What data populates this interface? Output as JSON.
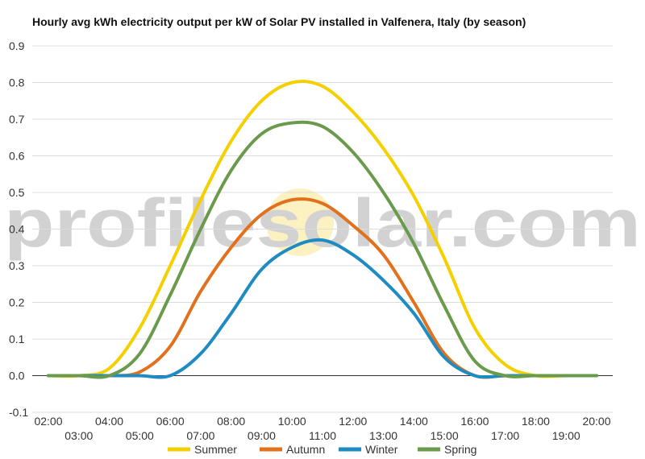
{
  "chart_data": {
    "type": "line",
    "title": "Hourly avg kWh electricity output per kW of Solar PV installed in Valfenera, Italy (by season)",
    "xlabel": "",
    "ylabel": "",
    "x": [
      "02:00",
      "03:00",
      "04:00",
      "05:00",
      "06:00",
      "07:00",
      "08:00",
      "09:00",
      "10:00",
      "11:00",
      "12:00",
      "13:00",
      "14:00",
      "15:00",
      "16:00",
      "17:00",
      "18:00",
      "19:00",
      "20:00"
    ],
    "ylim": [
      -0.1,
      0.9
    ],
    "yticks": [
      "0.9",
      "0.8",
      "0.7",
      "0.6",
      "0.5",
      "0.4",
      "0.3",
      "0.2",
      "0.1",
      "0.0",
      "-0.1"
    ],
    "grid": true,
    "legend_position": "bottom",
    "watermark": "profilesolar.com",
    "series": [
      {
        "name": "Summer",
        "color": "#f5d000",
        "values": [
          0.0,
          0.0,
          0.02,
          0.13,
          0.3,
          0.48,
          0.64,
          0.75,
          0.8,
          0.79,
          0.72,
          0.62,
          0.49,
          0.32,
          0.13,
          0.03,
          0.0,
          0.0,
          0.0
        ]
      },
      {
        "name": "Autumn",
        "color": "#e2711d",
        "values": [
          0.0,
          0.0,
          0.0,
          0.01,
          0.08,
          0.23,
          0.35,
          0.44,
          0.48,
          0.47,
          0.41,
          0.33,
          0.2,
          0.06,
          0.0,
          0.0,
          0.0,
          0.0,
          0.0
        ]
      },
      {
        "name": "Winter",
        "color": "#1e8bc3",
        "values": [
          0.0,
          0.0,
          0.0,
          0.0,
          0.0,
          0.06,
          0.17,
          0.29,
          0.35,
          0.37,
          0.33,
          0.26,
          0.17,
          0.05,
          0.0,
          0.0,
          0.0,
          0.0,
          0.0
        ]
      },
      {
        "name": "Spring",
        "color": "#6a9a4c",
        "values": [
          0.0,
          0.0,
          0.0,
          0.06,
          0.22,
          0.4,
          0.56,
          0.66,
          0.69,
          0.68,
          0.61,
          0.5,
          0.36,
          0.19,
          0.04,
          0.0,
          0.0,
          0.0,
          0.0
        ]
      }
    ]
  }
}
